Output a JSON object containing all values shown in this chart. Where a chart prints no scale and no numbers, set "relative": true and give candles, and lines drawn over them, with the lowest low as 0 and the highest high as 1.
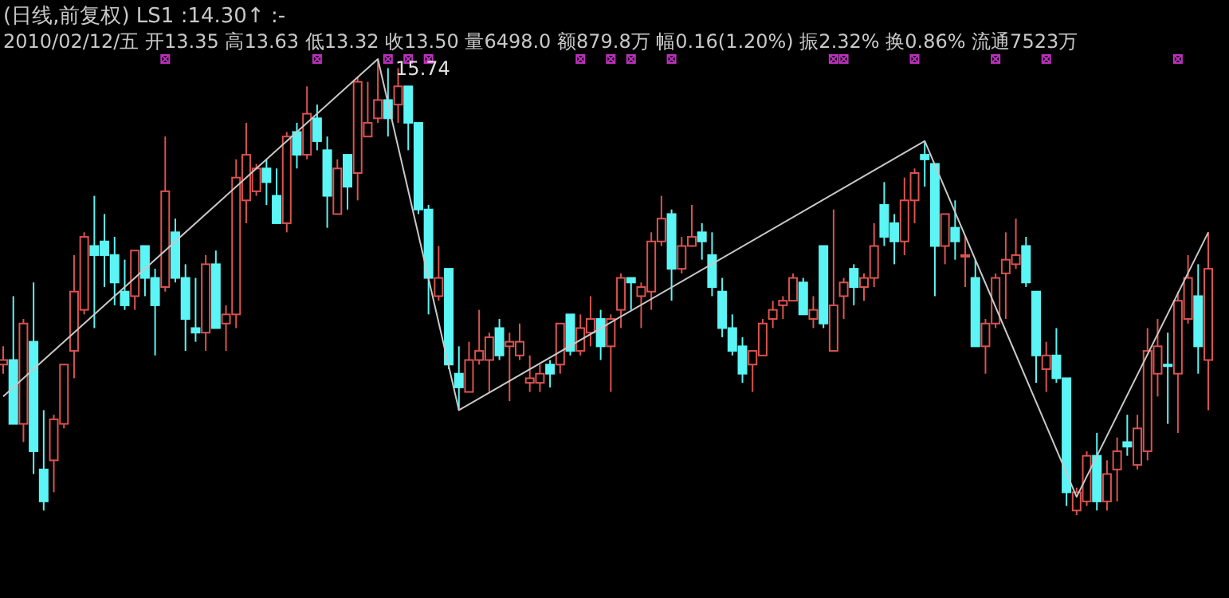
{
  "chart_data": {
    "type": "candlestick",
    "title": "(日线,前复权)",
    "subtitle": "2010/02/12/五 开13.35 高13.63 低13.32 收13.50 量6498.0 额879.8万 幅0.16(1.20%) 振2.32% 换0.86% 流通7523万",
    "relative": true,
    "colors": [
      "#d9534f",
      "#5cf5f5",
      "#d9534f",
      "#5cf5f5",
      "#5cf5f5",
      "#d9534f",
      "#d9534f",
      "#d9534f",
      "#d9534f",
      "#5cf5f5",
      "#5cf5f5",
      "#5cf5f5",
      "#5cf5f5",
      "#d9534f",
      "#5cf5f5",
      "#5cf5f5",
      "#d9534f",
      "#5cf5f5",
      "#5cf5f5",
      "#5cf5f5",
      "#d9534f",
      "#5cf5f5",
      "#d9534f",
      "#d9534f",
      "#d9534f",
      "#d9534f",
      "#5cf5f5",
      "#5cf5f5",
      "#d9534f",
      "#5cf5f5",
      "#d9534f",
      "#5cf5f5",
      "#5cf5f5",
      "#d9534f",
      "#5cf5f5",
      "#d9534f",
      "#d9534f",
      "#d9534f",
      "#5cf5f5",
      "#d9534f",
      "#5cf5f5",
      "#5cf5f5",
      "#5cf5f5",
      "#d9534f",
      "#5cf5f5",
      "#5cf5f5",
      "#d9534f",
      "#d9534f",
      "#d9534f",
      "#5cf5f5",
      "#d9534f",
      "#d9534f",
      "#d9534f",
      "#d9534f",
      "#5cf5f5",
      "#d9534f",
      "#5cf5f5",
      "#d9534f",
      "#d9534f",
      "#5cf5f5",
      "#d9534f",
      "#d9534f",
      "#5cf5f5",
      "#d9534f",
      "#d9534f",
      "#d9534f",
      "#5cf5f5",
      "#d9534f",
      "#d9534f",
      "#5cf5f5",
      "#5cf5f5",
      "#5cf5f5",
      "#5cf5f5",
      "#5cf5f5",
      "#d9534f",
      "#d9534f",
      "#d9534f",
      "#d9534f",
      "#d9534f",
      "#5cf5f5",
      "#d9534f",
      "#5cf5f5",
      "#d9534f",
      "#d9534f",
      "#5cf5f5",
      "#d9534f",
      "#d9534f",
      "#5cf5f5",
      "#5cf5f5",
      "#d9534f",
      "#d9534f",
      "#5cf5f5",
      "#5cf5f5",
      "#d9534f",
      "#5cf5f5",
      "#d9534f",
      "#5cf5f5",
      "#d9534f",
      "#d9534f",
      "#d9534f",
      "#d9534f",
      "#5cf5f5",
      "#5cf5f5",
      "#d9534f",
      "#5cf5f5",
      "#5cf5f5",
      "#d9534f",
      "#d9534f",
      "#5cf5f5",
      "#d9534f",
      "#d9534f",
      "#5cf5f5",
      "#d9534f",
      "#d9534f",
      "#d9534f",
      "#5cf5f5",
      "#d9534f",
      "#d9534f",
      "#5cf5f5",
      "#d9534f"
    ],
    "categories": [
      null,
      null,
      null,
      null,
      null,
      null,
      null,
      null,
      null,
      null,
      null,
      null,
      null,
      null,
      null,
      null,
      null,
      null,
      null,
      null,
      null,
      null,
      null,
      null,
      null,
      null,
      null,
      null,
      null,
      null,
      null,
      null,
      null,
      null,
      null,
      null,
      null,
      null,
      null,
      null,
      null,
      null,
      null,
      null,
      null,
      null,
      null,
      null,
      null,
      null,
      null,
      null,
      null,
      null,
      null,
      null,
      null,
      null,
      null,
      null,
      null,
      null,
      null,
      null,
      null,
      null,
      null,
      null,
      null,
      null,
      null,
      null,
      null,
      null,
      null,
      null,
      null,
      null,
      null,
      null,
      null,
      null,
      null,
      null,
      null,
      null,
      null,
      null,
      null,
      null,
      null,
      null,
      null,
      null,
      null,
      null,
      null,
      null,
      null,
      null,
      null,
      null,
      null,
      null,
      null,
      null,
      null,
      null,
      null,
      null,
      null,
      null,
      null,
      null,
      null,
      null,
      null,
      null,
      null,
      null
    ],
    "ohlc": [
      [
        0.33,
        0.37,
        0.31,
        0.34
      ],
      [
        0.34,
        0.48,
        0.2,
        0.2
      ],
      [
        0.2,
        0.43,
        0.16,
        0.42
      ],
      [
        0.38,
        0.51,
        0.09,
        0.14
      ],
      [
        0.1,
        0.23,
        0.01,
        0.03
      ],
      [
        0.12,
        0.22,
        0.05,
        0.21
      ],
      [
        0.2,
        0.33,
        0.19,
        0.33
      ],
      [
        0.36,
        0.57,
        0.3,
        0.49
      ],
      [
        0.45,
        0.62,
        0.44,
        0.61
      ],
      [
        0.59,
        0.7,
        0.41,
        0.57
      ],
      [
        0.6,
        0.66,
        0.5,
        0.57
      ],
      [
        0.57,
        0.61,
        0.46,
        0.51
      ],
      [
        0.49,
        0.56,
        0.45,
        0.46
      ],
      [
        0.48,
        0.58,
        0.45,
        0.58
      ],
      [
        0.59,
        0.59,
        0.48,
        0.52
      ],
      [
        0.52,
        0.54,
        0.35,
        0.46
      ],
      [
        0.5,
        0.83,
        0.49,
        0.71
      ],
      [
        0.62,
        0.65,
        0.51,
        0.52
      ],
      [
        0.52,
        0.55,
        0.36,
        0.43
      ],
      [
        0.41,
        0.52,
        0.38,
        0.4
      ],
      [
        0.4,
        0.57,
        0.36,
        0.55
      ],
      [
        0.55,
        0.58,
        0.41,
        0.41
      ],
      [
        0.42,
        0.46,
        0.36,
        0.44
      ],
      [
        0.44,
        0.78,
        0.41,
        0.74
      ],
      [
        0.69,
        0.86,
        0.64,
        0.79
      ],
      [
        0.71,
        0.77,
        0.7,
        0.76
      ],
      [
        0.76,
        0.78,
        0.68,
        0.73
      ],
      [
        0.7,
        0.76,
        0.64,
        0.64
      ],
      [
        0.64,
        0.84,
        0.62,
        0.83
      ],
      [
        0.84,
        0.86,
        0.76,
        0.79
      ],
      [
        0.79,
        0.94,
        0.78,
        0.88
      ],
      [
        0.87,
        0.9,
        0.8,
        0.82
      ],
      [
        0.8,
        0.83,
        0.63,
        0.7
      ],
      [
        0.66,
        0.78,
        0.66,
        0.76
      ],
      [
        0.79,
        0.79,
        0.67,
        0.72
      ],
      [
        0.75,
        0.96,
        0.69,
        0.95
      ],
      [
        0.83,
        0.95,
        0.83,
        0.86
      ],
      [
        0.87,
        1,
        0.86,
        0.91
      ],
      [
        0.91,
        0.98,
        0.83,
        0.87
      ],
      [
        0.9,
        0.98,
        0.86,
        0.94
      ],
      [
        0.94,
        0.94,
        0.8,
        0.86
      ],
      [
        0.86,
        0.86,
        0.66,
        0.67
      ],
      [
        0.67,
        0.68,
        0.44,
        0.52
      ],
      [
        0.48,
        0.59,
        0.47,
        0.52
      ],
      [
        0.54,
        0.54,
        0.32,
        0.33
      ],
      [
        0.31,
        0.37,
        0.23,
        0.28
      ],
      [
        0.27,
        0.38,
        0.27,
        0.34
      ],
      [
        0.34,
        0.45,
        0.33,
        0.36
      ],
      [
        0.34,
        0.4,
        0.27,
        0.39
      ],
      [
        0.41,
        0.43,
        0.34,
        0.35
      ],
      [
        0.37,
        0.4,
        0.25,
        0.38
      ],
      [
        0.35,
        0.42,
        0.34,
        0.38
      ],
      [
        0.29,
        0.35,
        0.27,
        0.3
      ],
      [
        0.29,
        0.33,
        0.27,
        0.31
      ],
      [
        0.33,
        0.34,
        0.28,
        0.31
      ],
      [
        0.33,
        0.42,
        0.31,
        0.42
      ],
      [
        0.44,
        0.44,
        0.35,
        0.36
      ],
      [
        0.36,
        0.44,
        0.35,
        0.41
      ],
      [
        0.4,
        0.48,
        0.37,
        0.43
      ],
      [
        0.43,
        0.45,
        0.34,
        0.37
      ],
      [
        0.37,
        0.44,
        0.27,
        0.43
      ],
      [
        0.45,
        0.53,
        0.41,
        0.52
      ],
      [
        0.52,
        0.52,
        0.45,
        0.51
      ],
      [
        0.48,
        0.51,
        0.41,
        0.5
      ],
      [
        0.49,
        0.62,
        0.45,
        0.6
      ],
      [
        0.6,
        0.7,
        0.59,
        0.65
      ],
      [
        0.66,
        0.67,
        0.47,
        0.54
      ],
      [
        0.54,
        0.61,
        0.53,
        0.59
      ],
      [
        0.59,
        0.68,
        0.59,
        0.61
      ],
      [
        0.62,
        0.64,
        0.56,
        0.6
      ],
      [
        0.57,
        0.62,
        0.48,
        0.5
      ],
      [
        0.49,
        0.52,
        0.39,
        0.41
      ],
      [
        0.41,
        0.44,
        0.35,
        0.36
      ],
      [
        0.37,
        0.39,
        0.29,
        0.31
      ],
      [
        0.33,
        0.36,
        0.27,
        0.36
      ],
      [
        0.35,
        0.43,
        0.35,
        0.42
      ],
      [
        0.43,
        0.47,
        0.41,
        0.45
      ],
      [
        0.46,
        0.48,
        0.43,
        0.47
      ],
      [
        0.47,
        0.53,
        0.47,
        0.52
      ],
      [
        0.51,
        0.52,
        0.44,
        0.44
      ],
      [
        0.43,
        0.48,
        0.41,
        0.45
      ],
      [
        0.59,
        0.59,
        0.41,
        0.42
      ],
      [
        0.36,
        0.67,
        0.36,
        0.46
      ],
      [
        0.48,
        0.52,
        0.43,
        0.51
      ],
      [
        0.54,
        0.55,
        0.46,
        0.5
      ],
      [
        0.5,
        0.53,
        0.47,
        0.52
      ],
      [
        0.52,
        0.64,
        0.5,
        0.59
      ],
      [
        0.68,
        0.73,
        0.59,
        0.61
      ],
      [
        0.64,
        0.66,
        0.55,
        0.6
      ],
      [
        0.6,
        0.74,
        0.57,
        0.69
      ],
      [
        0.69,
        0.76,
        0.64,
        0.75
      ],
      [
        0.79,
        0.82,
        0.72,
        0.78
      ],
      [
        0.77,
        0.77,
        0.48,
        0.59
      ],
      [
        0.59,
        0.66,
        0.55,
        0.66
      ],
      [
        0.63,
        0.69,
        0.56,
        0.6
      ],
      [
        0.57,
        0.61,
        0.5,
        0.57
      ],
      [
        0.52,
        0.56,
        0.37,
        0.37
      ],
      [
        0.37,
        0.43,
        0.31,
        0.42
      ],
      [
        0.42,
        0.53,
        0.41,
        0.52
      ],
      [
        0.53,
        0.62,
        0.43,
        0.56
      ],
      [
        0.55,
        0.65,
        0.54,
        0.57
      ],
      [
        0.59,
        0.61,
        0.5,
        0.51
      ],
      [
        0.49,
        0.49,
        0.29,
        0.35
      ],
      [
        0.32,
        0.38,
        0.27,
        0.35
      ],
      [
        0.35,
        0.41,
        0.29,
        0.3
      ],
      [
        0.3,
        0.3,
        0.02,
        0.05
      ],
      [
        0.01,
        0.06,
        0,
        0.05
      ],
      [
        0.03,
        0.14,
        0.02,
        0.13
      ],
      [
        0.13,
        0.18,
        0.01,
        0.03
      ],
      [
        0.03,
        0.12,
        0.01,
        0.09
      ],
      [
        0.1,
        0.17,
        0.03,
        0.14
      ],
      [
        0.16,
        0.22,
        0.13,
        0.15
      ],
      [
        0.11,
        0.22,
        0.1,
        0.19
      ],
      [
        0.14,
        0.41,
        0.12,
        0.36
      ],
      [
        0.31,
        0.43,
        0.26,
        0.37
      ],
      [
        0.33,
        0.4,
        0.2,
        0.33
      ],
      [
        0.31,
        0.49,
        0.18,
        0.47
      ],
      [
        0.43,
        0.57,
        0.42,
        0.52
      ],
      [
        0.48,
        0.55,
        0.31,
        0.37
      ],
      [
        0.34,
        0.62,
        0.23,
        0.54
      ]
    ],
    "series": [
      {
        "type": "line",
        "name": "LS1",
        "color": "#c8c8c8",
        "values": [
          0.26,
          null,
          null,
          null,
          null,
          null,
          null,
          null,
          null,
          null,
          null,
          null,
          null,
          null,
          null,
          null,
          null,
          null,
          null,
          null,
          null,
          null,
          null,
          null,
          null,
          null,
          null,
          null,
          null,
          null,
          null,
          null,
          null,
          null,
          null,
          null,
          null,
          1,
          null,
          null,
          null,
          null,
          null,
          null,
          null,
          0.23,
          null,
          null,
          null,
          null,
          null,
          null,
          null,
          null,
          null,
          null,
          null,
          null,
          null,
          null,
          null,
          null,
          null,
          null,
          null,
          null,
          null,
          null,
          null,
          null,
          null,
          null,
          null,
          null,
          null,
          null,
          null,
          null,
          null,
          null,
          null,
          null,
          null,
          null,
          null,
          null,
          null,
          null,
          null,
          null,
          null,
          0.82,
          null,
          null,
          null,
          null,
          null,
          null,
          null,
          null,
          null,
          null,
          null,
          null,
          null,
          null,
          0.04,
          null,
          null,
          null,
          null,
          null,
          null,
          null,
          null,
          null,
          null,
          null,
          null,
          0.62
        ]
      },
      {
        "type": "scatter",
        "color": "#c030c0",
        "marker": "square",
        "values": [
          null,
          null,
          null,
          null,
          null,
          null,
          null,
          null,
          null,
          null,
          null,
          null,
          null,
          null,
          null,
          null,
          1,
          null,
          null,
          null,
          null,
          null,
          null,
          null,
          null,
          null,
          null,
          null,
          null,
          null,
          null,
          1,
          null,
          null,
          null,
          null,
          null,
          null,
          1,
          null,
          1,
          null,
          1,
          null,
          null,
          null,
          null,
          null,
          null,
          null,
          null,
          null,
          null,
          null,
          null,
          null,
          null,
          1,
          null,
          null,
          1,
          null,
          1,
          null,
          null,
          null,
          1,
          null,
          null,
          null,
          null,
          null,
          null,
          null,
          null,
          null,
          null,
          null,
          null,
          null,
          null,
          null,
          1,
          1,
          null,
          null,
          null,
          null,
          null,
          null,
          1,
          null,
          null,
          null,
          null,
          null,
          null,
          null,
          1,
          null,
          null,
          null,
          null,
          1,
          null,
          null,
          null,
          null,
          null,
          null,
          null,
          null,
          null,
          null,
          null,
          null,
          1,
          null,
          null,
          null
        ]
      }
    ],
    "annotations": [
      ":14.30↑ :-",
      {
        "text": "15.74",
        "y": 1
      }
    ]
  }
}
